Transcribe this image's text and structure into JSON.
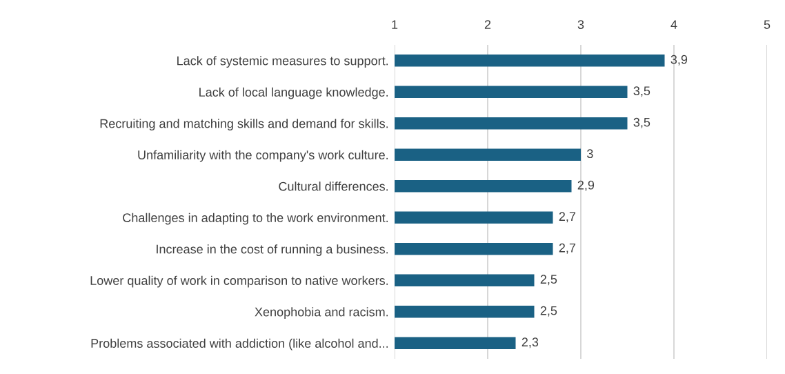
{
  "chart_data": {
    "type": "bar",
    "orientation": "horizontal",
    "categories": [
      "Lack of systemic measures to support.",
      "Lack of local language knowledge.",
      "Recruiting and matching skills and demand for skills.",
      "Unfamiliarity with the company's work culture.",
      "Cultural differences.",
      "Challenges in adapting to the work environment.",
      "Increase in the cost of running a business.",
      "Lower quality of work in comparison to native workers.",
      "Xenophobia and racism.",
      "Problems associated with addiction (like alcohol and..."
    ],
    "values": [
      3.9,
      3.5,
      3.5,
      3,
      2.9,
      2.7,
      2.7,
      2.5,
      2.5,
      2.3
    ],
    "value_labels": [
      "3,9",
      "3,5",
      "3,5",
      "3",
      "2,9",
      "2,7",
      "2,7",
      "2,5",
      "2,5",
      "2,3"
    ],
    "color": "#1a6184",
    "xlim": [
      1,
      5
    ],
    "xticks": [
      1,
      2,
      3,
      4,
      5
    ],
    "grid": "x",
    "legend": false
  }
}
